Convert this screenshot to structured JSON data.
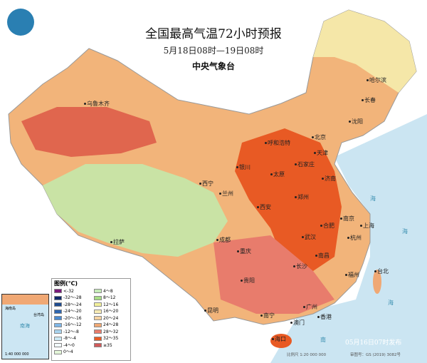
{
  "title": "全国最高气温72小时预报",
  "subtitle": "5月18日08时—19日08时",
  "issuer": "中央气象台",
  "issued_time": "05月16日07时发布",
  "scale": "比例尺 1:20 000 000",
  "approval": "审图号：GS (2019) 3082号",
  "logo_icon": "cma-logo",
  "legend": {
    "title": "图例(℃)",
    "items": [
      {
        "label": "<-32",
        "color": "#7a1a7a"
      },
      {
        "label": "-32～-28",
        "color": "#102a6a"
      },
      {
        "label": "-28～-24",
        "color": "#1f4c8f"
      },
      {
        "label": "-24～-20",
        "color": "#2e66b0"
      },
      {
        "label": "-20～-16",
        "color": "#4a8ad0"
      },
      {
        "label": "-16～-12",
        "color": "#7fb6e6"
      },
      {
        "label": "-12～-8",
        "color": "#a9d4ee"
      },
      {
        "label": "-8～-4",
        "color": "#cdeaf5"
      },
      {
        "label": "-4～0",
        "color": "#f3fafc"
      },
      {
        "label": "0～4",
        "color": "#e4f6d8"
      },
      {
        "label": "4～8",
        "color": "#c6ecb8"
      },
      {
        "label": "8～12",
        "color": "#a8de86"
      },
      {
        "label": "12～16",
        "color": "#f2f09a"
      },
      {
        "label": "16～20",
        "color": "#f7ebb4"
      },
      {
        "label": "20～24",
        "color": "#f5d2a0"
      },
      {
        "label": "24～28",
        "color": "#f0a874"
      },
      {
        "label": "28～32",
        "color": "#e87c6c"
      },
      {
        "label": "32～35",
        "color": "#e85a24"
      },
      {
        "label": "≥35",
        "color": "#d05a5a"
      }
    ]
  },
  "inset": {
    "scale": "1:40 000 000",
    "labels": [
      "南海",
      "海南岛",
      "台湾岛"
    ]
  },
  "cities": [
    "乌鲁木齐",
    "哈尔滨",
    "长春",
    "沈阳",
    "北京",
    "天津",
    "呼和浩特",
    "石家庄",
    "太原",
    "济南",
    "银川",
    "西宁",
    "兰州",
    "郑州",
    "西安",
    "南京",
    "合肥",
    "上海",
    "武汉",
    "杭州",
    "成都",
    "重庆",
    "长沙",
    "南昌",
    "拉萨",
    "贵阳",
    "福州",
    "台北",
    "昆明",
    "广州",
    "南宁",
    "澳门",
    "香港",
    "海口"
  ],
  "sea_labels": [
    "海",
    "海",
    "海",
    "南"
  ]
}
